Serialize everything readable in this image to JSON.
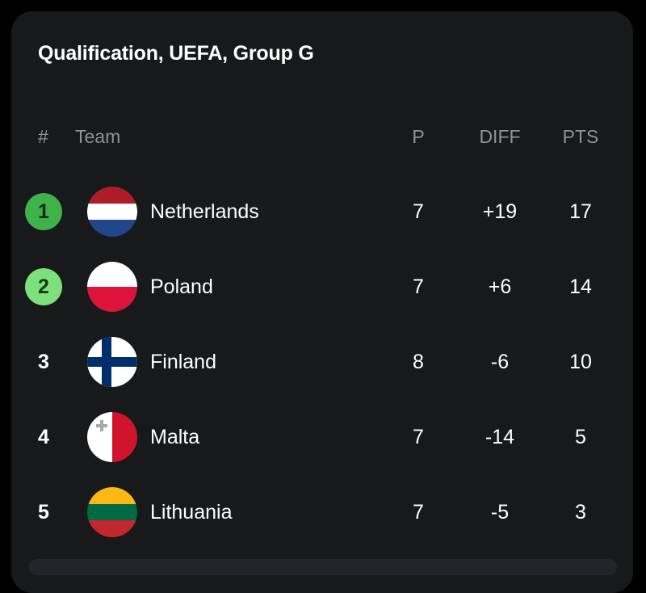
{
  "title": "Qualification, UEFA, Group G",
  "columns": {
    "rank": "#",
    "team": "Team",
    "played": "P",
    "diff": "DIFF",
    "points": "PTS"
  },
  "rows": [
    {
      "rank": "1",
      "team": "Netherlands",
      "flag": "netherlands-flag-icon",
      "played": "7",
      "diff": "+19",
      "points": "17",
      "qualification": "direct",
      "badge_color": "#3fb24a"
    },
    {
      "rank": "2",
      "team": "Poland",
      "flag": "poland-flag-icon",
      "played": "7",
      "diff": "+6",
      "points": "14",
      "qualification": "playoff",
      "badge_color": "#7de07a"
    },
    {
      "rank": "3",
      "team": "Finland",
      "flag": "finland-flag-icon",
      "played": "8",
      "diff": "-6",
      "points": "10",
      "qualification": "none"
    },
    {
      "rank": "4",
      "team": "Malta",
      "flag": "malta-flag-icon",
      "played": "7",
      "diff": "-14",
      "points": "5",
      "qualification": "none"
    },
    {
      "rank": "5",
      "team": "Lithuania",
      "flag": "lithuania-flag-icon",
      "played": "7",
      "diff": "-5",
      "points": "3",
      "qualification": "none"
    }
  ],
  "colors": {
    "card_background": "#17191b",
    "header_text": "#8f9396",
    "text": "#ffffff"
  }
}
